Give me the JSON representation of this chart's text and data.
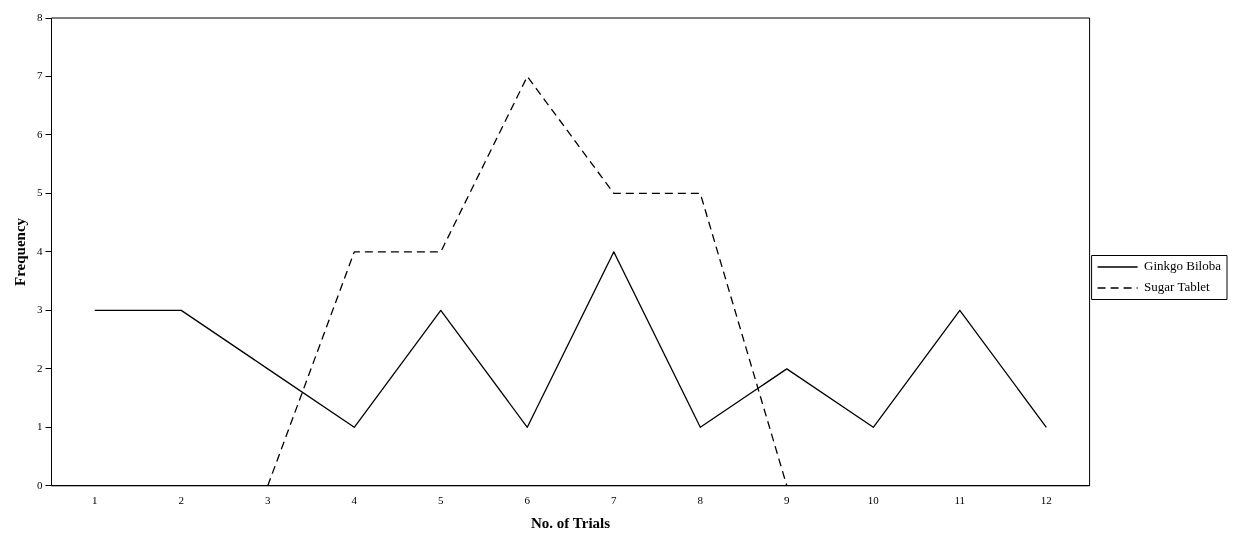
{
  "chart_data": {
    "type": "line",
    "xlabel": "No. of Trials",
    "ylabel": "Frequency",
    "categories": [
      "1",
      "2",
      "3",
      "4",
      "5",
      "6",
      "7",
      "8",
      "9",
      "10",
      "11",
      "12"
    ],
    "series": [
      {
        "name": "Ginkgo Biloba",
        "color": "#000000",
        "line_style": "solid",
        "values": [
          3,
          3,
          2,
          1,
          3,
          1,
          4,
          1,
          2,
          1,
          3,
          1
        ]
      },
      {
        "name": "Sugar Tablet",
        "color": "#000000",
        "line_style": "dashed",
        "values": [
          null,
          null,
          0,
          4,
          4,
          7,
          5,
          5,
          0,
          null,
          null,
          null
        ]
      }
    ],
    "ylim": [
      0,
      8
    ],
    "yticks": [
      0,
      1,
      2,
      3,
      4,
      5,
      6,
      7,
      8
    ],
    "grid": false,
    "legend": "right",
    "marker": "none"
  }
}
